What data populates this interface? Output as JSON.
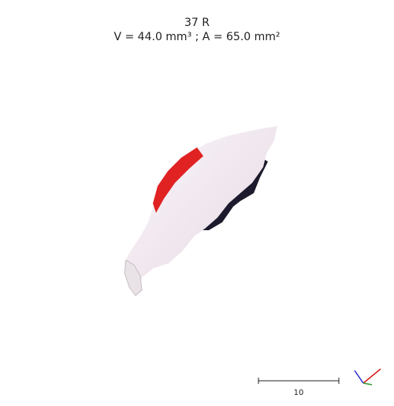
{
  "header": {
    "tooth_label": "37 R",
    "measurements": "V = 44.0 mm³ ; A = 65.0 mm²"
  },
  "scale": {
    "label": "10"
  },
  "colors": {
    "surface": "#f0e8ee",
    "highlight_region": "#e02222",
    "shadow": "#1c1a2c",
    "axis_x": "#d62020",
    "axis_y": "#2f9d2f",
    "axis_z": "#2a2ad0"
  },
  "icons": {
    "orientation": "xyz-axes-icon"
  }
}
